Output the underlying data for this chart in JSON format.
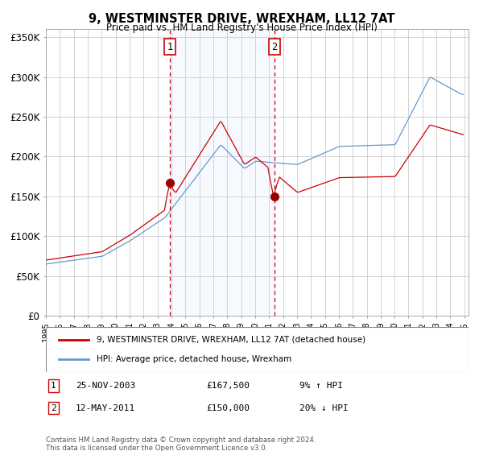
{
  "title": "9, WESTMINSTER DRIVE, WREXHAM, LL12 7AT",
  "subtitle": "Price paid vs. HM Land Registry's House Price Index (HPI)",
  "background_color": "#ffffff",
  "plot_bg_color": "#ffffff",
  "grid_color": "#cccccc",
  "ylim": [
    0,
    360000
  ],
  "yticks": [
    0,
    50000,
    100000,
    150000,
    200000,
    250000,
    300000,
    350000
  ],
  "ytick_labels": [
    "£0",
    "£50K",
    "£100K",
    "£150K",
    "£200K",
    "£250K",
    "£300K",
    "£350K"
  ],
  "x_start_year": 1995,
  "x_end_year": 2025,
  "transaction1": {
    "date_num": 2003.9,
    "price": 167500,
    "label": "1",
    "date_str": "25-NOV-2003",
    "hpi_pct": "9% ↑ HPI"
  },
  "transaction2": {
    "date_num": 2011.37,
    "price": 150000,
    "label": "2",
    "date_str": "12-MAY-2011",
    "hpi_pct": "20% ↓ HPI"
  },
  "shaded_region": [
    2003.9,
    2011.37
  ],
  "red_line_color": "#cc0000",
  "blue_line_color": "#6699cc",
  "shaded_color": "#ddeeff",
  "dashed_line_color": "#cc0000",
  "marker_color": "#990000",
  "legend_label_red": "9, WESTMINSTER DRIVE, WREXHAM, LL12 7AT (detached house)",
  "legend_label_blue": "HPI: Average price, detached house, Wrexham",
  "footer1": "Contains HM Land Registry data © Crown copyright and database right 2024.",
  "footer2": "This data is licensed under the Open Government Licence v3.0.",
  "label_box_color": "#ffffff",
  "label_box_edge": "#cc0000"
}
